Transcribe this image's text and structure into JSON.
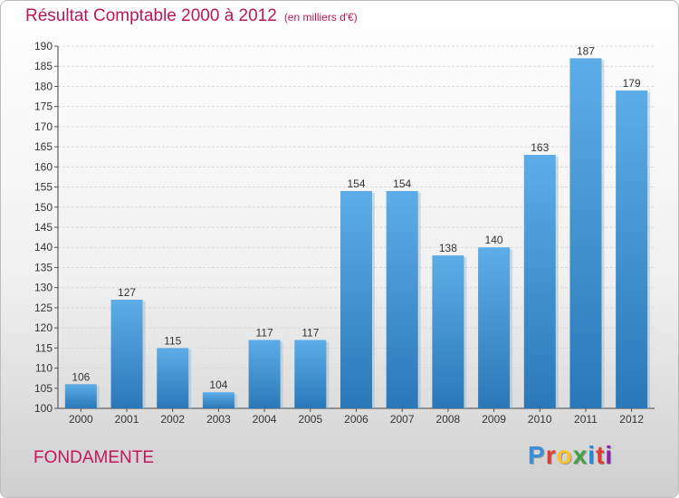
{
  "header": {
    "title": "Résultat Comptable 2000 à 2012",
    "subtitle": "(en milliers d'€)"
  },
  "footer": {
    "commune": "FONDAMENTE",
    "logo_text": "Proxiti",
    "logo_colors": [
      "#3a8fd8",
      "#e53935",
      "#fbc02d",
      "#43a047",
      "#1e88e5",
      "#e53935",
      "#8e24aa"
    ]
  },
  "colors": {
    "bar_top": "#5dade8",
    "bar_bottom": "#2a78b8",
    "title": "#b8185a",
    "grid": "#d9d9d9"
  },
  "chart_data": {
    "type": "bar",
    "categories": [
      "2000",
      "2001",
      "2002",
      "2003",
      "2004",
      "2005",
      "2006",
      "2007",
      "2008",
      "2009",
      "2010",
      "2011",
      "2012"
    ],
    "values": [
      106,
      127,
      115,
      104,
      117,
      117,
      154,
      154,
      138,
      140,
      163,
      187,
      179
    ],
    "ylim": [
      100,
      190
    ],
    "yticks": [
      100,
      105,
      110,
      115,
      120,
      125,
      130,
      135,
      140,
      145,
      150,
      155,
      160,
      165,
      170,
      175,
      180,
      185,
      190
    ],
    "grid": true,
    "data_labels": true
  }
}
